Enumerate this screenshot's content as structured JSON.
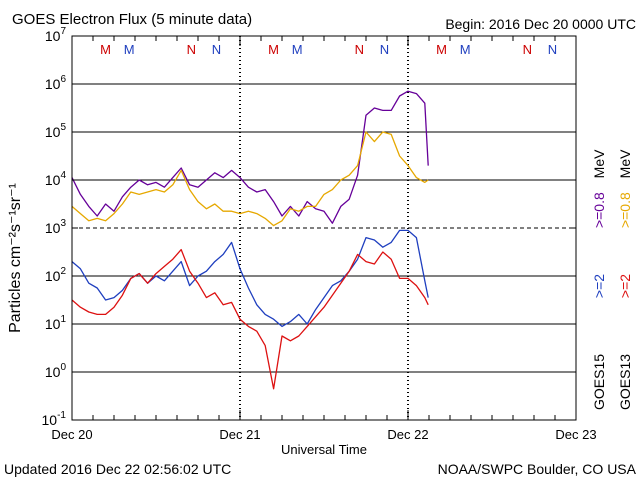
{
  "chart_data": {
    "type": "line",
    "title": "GOES Electron Flux (5 minute data)",
    "begin_label": "Begin: 2016 Dec 20 0000 UTC",
    "xlabel": "Universal Time",
    "ylabel": "Particles cm⁻²s⁻¹sr⁻¹",
    "x_ticks": [
      "Dec 20",
      "Dec 21",
      "Dec 22",
      "Dec 23"
    ],
    "xlim_days": [
      0,
      3
    ],
    "ylim_log10": [
      -1,
      7
    ],
    "y_ticks": [
      {
        "base": "10",
        "exp": "7"
      },
      {
        "base": "10",
        "exp": "6"
      },
      {
        "base": "10",
        "exp": "5"
      },
      {
        "base": "10",
        "exp": "4"
      },
      {
        "base": "10",
        "exp": "3"
      },
      {
        "base": "10",
        "exp": "2"
      },
      {
        "base": "10",
        "exp": "1"
      },
      {
        "base": "10",
        "exp": "0"
      },
      {
        "base": "10",
        "exp": "-1"
      }
    ],
    "threshold_log10": 3,
    "markers": [
      {
        "label": "M",
        "day": 0.2,
        "color": "#cc0000"
      },
      {
        "label": "M",
        "day": 0.34,
        "color": "#1f3fbf"
      },
      {
        "label": "N",
        "day": 0.71,
        "color": "#cc0000"
      },
      {
        "label": "N",
        "day": 0.86,
        "color": "#1f3fbf"
      },
      {
        "label": "M",
        "day": 1.2,
        "color": "#cc0000"
      },
      {
        "label": "M",
        "day": 1.34,
        "color": "#1f3fbf"
      },
      {
        "label": "N",
        "day": 1.71,
        "color": "#cc0000"
      },
      {
        "label": "N",
        "day": 1.86,
        "color": "#1f3fbf"
      },
      {
        "label": "M",
        "day": 2.2,
        "color": "#cc0000"
      },
      {
        "label": "M",
        "day": 2.34,
        "color": "#1f3fbf"
      },
      {
        "label": "N",
        "day": 2.71,
        "color": "#cc0000"
      },
      {
        "label": "N",
        "day": 2.86,
        "color": "#1f3fbf"
      }
    ],
    "series": [
      {
        "name": "GOES15 >=0.8 MeV",
        "color": "#660099",
        "x": [
          0,
          0.05,
          0.1,
          0.15,
          0.2,
          0.25,
          0.3,
          0.35,
          0.4,
          0.45,
          0.5,
          0.55,
          0.6,
          0.65,
          0.7,
          0.75,
          0.8,
          0.85,
          0.9,
          0.95,
          1.0,
          1.05,
          1.1,
          1.15,
          1.2,
          1.25,
          1.3,
          1.35,
          1.4,
          1.45,
          1.5,
          1.55,
          1.6,
          1.65,
          1.7,
          1.75,
          1.8,
          1.85,
          1.9,
          1.95,
          2.0,
          2.05,
          2.1,
          2.12
        ],
        "log10": [
          4.05,
          3.7,
          3.45,
          3.25,
          3.5,
          3.35,
          3.65,
          3.85,
          4.0,
          3.9,
          3.95,
          3.85,
          4.05,
          4.25,
          3.9,
          3.85,
          4.0,
          4.15,
          4.05,
          4.2,
          4.05,
          3.85,
          3.75,
          3.8,
          3.55,
          3.25,
          3.45,
          3.25,
          3.55,
          3.4,
          3.35,
          3.1,
          3.45,
          3.6,
          4.1,
          5.35,
          5.5,
          5.45,
          5.45,
          5.75,
          5.85,
          5.8,
          5.6,
          4.3
        ]
      },
      {
        "name": "GOES13 >=0.8 MeV",
        "color": "#e6a800",
        "x": [
          0,
          0.05,
          0.1,
          0.15,
          0.2,
          0.25,
          0.3,
          0.35,
          0.4,
          0.45,
          0.5,
          0.55,
          0.6,
          0.65,
          0.7,
          0.75,
          0.8,
          0.85,
          0.9,
          0.95,
          1.0,
          1.05,
          1.1,
          1.15,
          1.2,
          1.25,
          1.3,
          1.35,
          1.4,
          1.45,
          1.5,
          1.55,
          1.6,
          1.65,
          1.7,
          1.75,
          1.8,
          1.85,
          1.9,
          1.95,
          2.0,
          2.05,
          2.1,
          2.12
        ],
        "log10": [
          3.45,
          3.3,
          3.15,
          3.2,
          3.15,
          3.3,
          3.5,
          3.75,
          3.7,
          3.75,
          3.8,
          3.75,
          3.9,
          4.2,
          3.8,
          3.55,
          3.4,
          3.5,
          3.35,
          3.35,
          3.3,
          3.35,
          3.3,
          3.2,
          3.05,
          3.15,
          3.4,
          3.35,
          3.45,
          3.45,
          3.7,
          3.8,
          4.0,
          4.1,
          4.3,
          5.0,
          4.8,
          5.0,
          4.95,
          4.5,
          4.3,
          4.05,
          3.95,
          4.0
        ]
      },
      {
        "name": "GOES15 >=2 MeV",
        "color": "#1f3fbf",
        "x": [
          0,
          0.05,
          0.1,
          0.15,
          0.2,
          0.25,
          0.3,
          0.35,
          0.4,
          0.45,
          0.5,
          0.55,
          0.6,
          0.65,
          0.7,
          0.75,
          0.8,
          0.85,
          0.9,
          0.95,
          1.0,
          1.05,
          1.1,
          1.15,
          1.2,
          1.25,
          1.3,
          1.35,
          1.4,
          1.45,
          1.5,
          1.55,
          1.6,
          1.65,
          1.7,
          1.75,
          1.8,
          1.85,
          1.9,
          1.95,
          2.0,
          2.05,
          2.1,
          2.12
        ],
        "log10": [
          2.3,
          2.15,
          1.85,
          1.75,
          1.5,
          1.55,
          1.7,
          1.95,
          2.05,
          1.85,
          2.0,
          1.9,
          2.1,
          2.3,
          1.8,
          2.0,
          2.1,
          2.3,
          2.45,
          2.7,
          2.15,
          1.75,
          1.4,
          1.2,
          1.1,
          0.95,
          1.05,
          1.2,
          1.0,
          1.3,
          1.55,
          1.8,
          1.9,
          2.1,
          2.35,
          2.8,
          2.75,
          2.6,
          2.7,
          2.95,
          2.95,
          2.8,
          1.9,
          1.55
        ]
      },
      {
        "name": "GOES13 >=2 MeV",
        "color": "#dd1111",
        "x": [
          0,
          0.05,
          0.1,
          0.15,
          0.2,
          0.25,
          0.3,
          0.35,
          0.4,
          0.45,
          0.5,
          0.55,
          0.6,
          0.65,
          0.7,
          0.75,
          0.8,
          0.85,
          0.9,
          0.95,
          1.0,
          1.05,
          1.1,
          1.15,
          1.2,
          1.25,
          1.3,
          1.35,
          1.4,
          1.45,
          1.5,
          1.55,
          1.6,
          1.65,
          1.7,
          1.75,
          1.8,
          1.85,
          1.9,
          1.95,
          2.0,
          2.05,
          2.1,
          2.12
        ],
        "log10": [
          1.5,
          1.35,
          1.25,
          1.2,
          1.2,
          1.35,
          1.6,
          1.95,
          2.05,
          1.85,
          2.05,
          2.2,
          2.35,
          2.55,
          2.1,
          1.85,
          1.55,
          1.65,
          1.4,
          1.45,
          1.1,
          0.95,
          0.85,
          0.55,
          -0.35,
          0.75,
          0.65,
          0.75,
          0.95,
          1.15,
          1.35,
          1.6,
          1.85,
          2.1,
          2.45,
          2.3,
          2.25,
          2.5,
          2.35,
          1.95,
          1.95,
          1.8,
          1.55,
          1.4
        ]
      }
    ],
    "legend": [
      {
        "satellite": "GOES15",
        "channel": ">=2",
        "channel2": ">=0.8",
        "unit": "MeV",
        "color1": "#1f3fbf",
        "color2": "#660099"
      },
      {
        "satellite": "GOES13",
        "channel": ">=2",
        "channel2": ">=0.8",
        "unit": "MeV",
        "color1": "#dd1111",
        "color2": "#e6a800"
      }
    ]
  },
  "footer": {
    "updated": "Updated 2016 Dec 22 02:56:02 UTC",
    "credit": "NOAA/SWPC Boulder, CO USA"
  }
}
